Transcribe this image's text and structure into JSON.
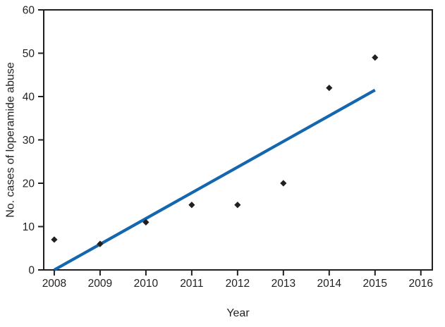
{
  "chart_data": {
    "type": "scatter",
    "title": "",
    "xlabel": "Year",
    "ylabel": "No. cases of loperamide abuse",
    "x": [
      2008,
      2009,
      2010,
      2011,
      2012,
      2013,
      2014,
      2015
    ],
    "values": [
      7,
      6,
      11,
      15,
      15,
      20,
      42,
      49
    ],
    "series_name": "No. cases of loperamide abuse",
    "trend_line": {
      "x1": 2008,
      "y1": 0,
      "x2": 2015,
      "y2": 41.5
    },
    "x_ticks": [
      2008,
      2009,
      2010,
      2011,
      2012,
      2013,
      2014,
      2015,
      2016
    ],
    "y_ticks": [
      0,
      10,
      20,
      30,
      40,
      50,
      60
    ],
    "xlim": [
      2007.77,
      2016.25
    ],
    "ylim": [
      0,
      60
    ],
    "grid": false,
    "legend": "none",
    "marker": "diamond",
    "colors": {
      "point": "#231f20",
      "trend": "#1466af",
      "axis": "#231f20",
      "background": "#ffffff"
    }
  }
}
